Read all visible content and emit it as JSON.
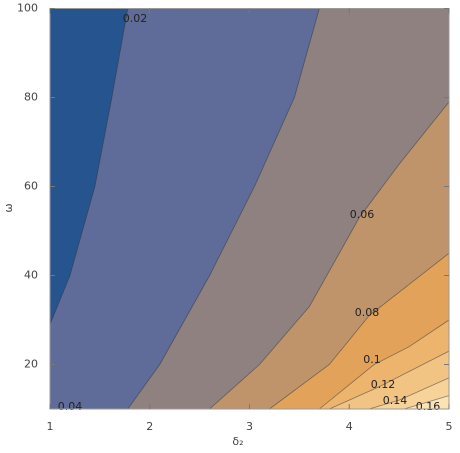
{
  "chart_data": {
    "type": "contour",
    "xlabel": "δ₂",
    "ylabel": "ω",
    "xlim": [
      1,
      5
    ],
    "ylim": [
      10,
      100
    ],
    "xticks": [
      1,
      2,
      3,
      4,
      5
    ],
    "yticks": [
      20,
      40,
      60,
      80,
      100
    ],
    "band_colors": [
      "#26548f",
      "#5f6b98",
      "#8e817f",
      "#bf946b",
      "#e3a25a",
      "#edb46d",
      "#f2c484",
      "#f7d39a",
      "#fbe3b4"
    ],
    "contours": [
      {
        "level": 0.02,
        "x": [
          1,
          1.2,
          1.45,
          1.62,
          1.78
        ],
        "y": [
          29,
          40,
          60,
          80,
          100
        ]
      },
      {
        "level": 0.04,
        "x": [
          1.78,
          2.1,
          2.6,
          3.05,
          3.45,
          3.7
        ],
        "y": [
          10,
          20,
          40,
          60,
          80,
          100
        ]
      },
      {
        "level": 0.06,
        "x": [
          2.6,
          3.1,
          3.6,
          4.1,
          4.5,
          5
        ],
        "y": [
          10,
          20,
          33,
          53,
          65,
          79
        ]
      },
      {
        "level": 0.08,
        "x": [
          3.2,
          3.8,
          4.2,
          4.6,
          5
        ],
        "y": [
          10,
          20,
          31,
          38,
          45
        ]
      },
      {
        "level": 0.1,
        "x": [
          3.7,
          4.25,
          4.6,
          5
        ],
        "y": [
          10,
          20,
          24,
          30
        ]
      },
      {
        "level": 0.12,
        "x": [
          3.8,
          4.3,
          5
        ],
        "y": [
          10,
          15,
          23
        ]
      },
      {
        "level": 0.14,
        "x": [
          4.2,
          4.5,
          5
        ],
        "y": [
          10,
          12,
          17
        ]
      },
      {
        "level": 0.16,
        "x": [
          4.55,
          5
        ],
        "y": [
          10,
          13
        ]
      }
    ]
  }
}
